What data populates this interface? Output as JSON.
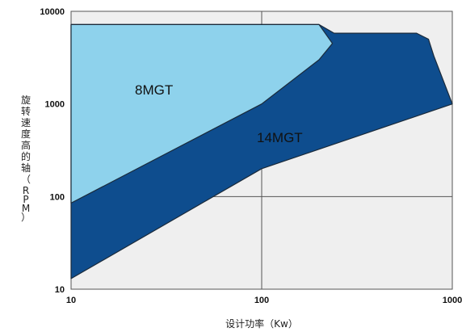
{
  "chart_data": {
    "type": "area",
    "xscale": "log",
    "yscale": "log",
    "xlim": [
      10,
      1000
    ],
    "ylim": [
      10,
      10000
    ],
    "grid": true,
    "xlabel": "设计功率（Kw）",
    "ylabel": "旋转速度高的轴（RPM）",
    "x_ticks": [
      "10",
      "100",
      "1000"
    ],
    "y_ticks": [
      "10",
      "100",
      "1000",
      "10000"
    ],
    "colors": {
      "plot_bg": "#efefef",
      "grid": "#555555",
      "series_14mgt": "#0e4d8e",
      "series_8mgt": "#8ed2ec",
      "outline": "#1a2a3a",
      "tip_accent": "#c0392b"
    },
    "series": [
      {
        "name": "14MGT",
        "boundary": [
          [
            10,
            7200
          ],
          [
            200,
            7200
          ],
          [
            240,
            5800
          ],
          [
            650,
            5800
          ],
          [
            750,
            5000
          ],
          [
            800,
            3300
          ],
          [
            1000,
            1000
          ],
          [
            100,
            200
          ],
          [
            10,
            13
          ]
        ]
      },
      {
        "name": "8MGT",
        "boundary": [
          [
            10,
            7200
          ],
          [
            200,
            7200
          ],
          [
            235,
            4500
          ],
          [
            200,
            3000
          ],
          [
            100,
            1000
          ],
          [
            10,
            85
          ]
        ]
      }
    ]
  }
}
